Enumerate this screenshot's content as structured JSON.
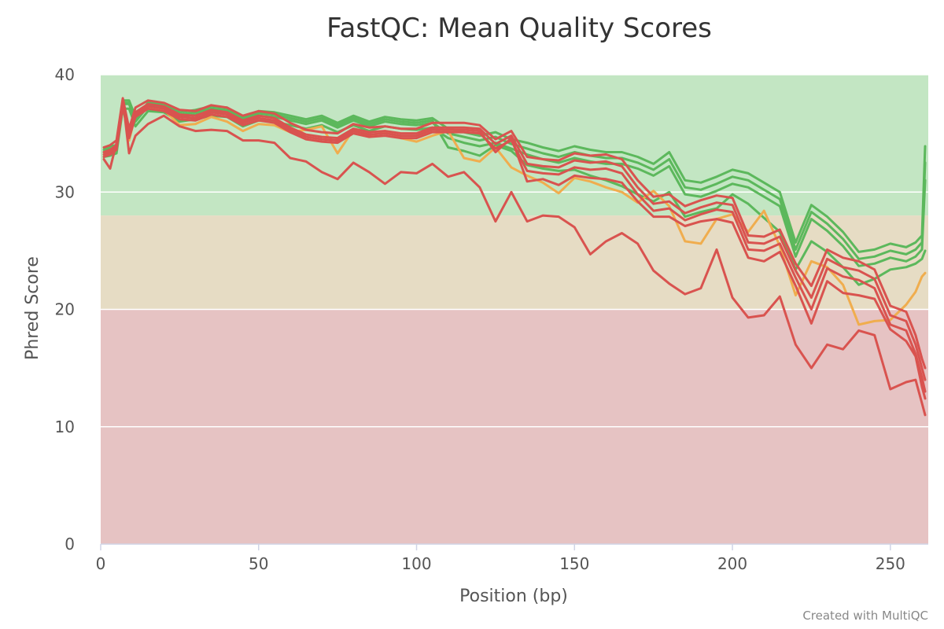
{
  "credit": "Created with MultiQC",
  "colors": {
    "band_good": "#c3e6c3",
    "band_warn": "#e6dcc4",
    "band_fail": "#e6c3c3",
    "pass": "#5cb85c",
    "warn": "#f0ad4e",
    "fail": "#d9534f",
    "text": "#333333"
  },
  "chart_data": {
    "type": "line",
    "title": "FastQC: Mean Quality Scores",
    "xlabel": "Position (bp)",
    "ylabel": "Phred Score",
    "xlim": [
      0,
      262
    ],
    "ylim": [
      0,
      40
    ],
    "xticks": [
      0,
      50,
      100,
      150,
      200,
      250
    ],
    "yticks": [
      0,
      10,
      20,
      30,
      40
    ],
    "grid": true,
    "bands": [
      {
        "from": 28,
        "to": 40,
        "color": "#c3e6c3"
      },
      {
        "from": 20,
        "to": 28,
        "color": "#e6dcc4"
      },
      {
        "from": 0,
        "to": 20,
        "color": "#e6c3c3"
      }
    ],
    "series": [
      {
        "status": "pass",
        "x": [
          1,
          3,
          5,
          7,
          9,
          11,
          15,
          20,
          25,
          30,
          35,
          40,
          45,
          50,
          55,
          60,
          65,
          70,
          75,
          80,
          85,
          90,
          95,
          100,
          105,
          110,
          115,
          120,
          125,
          130,
          135,
          140,
          145,
          150,
          155,
          160,
          165,
          170,
          175,
          180,
          185,
          190,
          195,
          200,
          205,
          210,
          215,
          220,
          225,
          230,
          235,
          240,
          245,
          250,
          255,
          258,
          260,
          261
        ],
        "y": [
          33.8,
          33.9,
          34.0,
          37.8,
          37.8,
          36.4,
          37.6,
          37.5,
          36.8,
          37.0,
          37.3,
          37.2,
          36.4,
          36.9,
          36.8,
          36.5,
          36.2,
          36.5,
          35.9,
          36.5,
          36.0,
          36.4,
          36.2,
          36.1,
          36.3,
          35.4,
          35.1,
          34.8,
          35.1,
          34.5,
          34.2,
          33.8,
          33.5,
          33.9,
          33.6,
          33.4,
          33.4,
          33.0,
          32.4,
          33.4,
          31.0,
          30.8,
          31.3,
          31.9,
          31.6,
          30.8,
          30.0,
          25.7,
          28.9,
          27.9,
          26.6,
          24.9,
          25.1,
          25.6,
          25.3,
          25.7,
          26.3,
          33.9
        ]
      },
      {
        "status": "pass",
        "x": [
          1,
          3,
          5,
          7,
          9,
          11,
          15,
          20,
          25,
          30,
          35,
          40,
          45,
          50,
          55,
          60,
          65,
          70,
          75,
          80,
          85,
          90,
          95,
          100,
          105,
          110,
          115,
          120,
          125,
          130,
          135,
          140,
          145,
          150,
          155,
          160,
          165,
          170,
          175,
          180,
          185,
          190,
          195,
          200,
          205,
          210,
          215,
          220,
          225,
          230,
          235,
          240,
          245,
          250,
          255,
          258,
          260,
          261
        ],
        "y": [
          33.4,
          33.5,
          33.7,
          37.5,
          37.5,
          36.0,
          37.3,
          37.2,
          36.4,
          36.6,
          36.9,
          36.8,
          36.0,
          36.5,
          36.4,
          36.1,
          35.8,
          36.1,
          35.5,
          36.1,
          35.6,
          36.0,
          35.8,
          35.7,
          35.9,
          35.0,
          34.7,
          34.4,
          34.7,
          34.1,
          33.7,
          33.3,
          33.0,
          33.4,
          33.1,
          32.9,
          32.9,
          32.5,
          31.9,
          32.8,
          30.4,
          30.2,
          30.7,
          31.3,
          31.0,
          30.2,
          29.4,
          25.1,
          28.3,
          27.3,
          26.0,
          24.3,
          24.5,
          25.0,
          24.7,
          25.1,
          25.7,
          32.5
        ]
      },
      {
        "status": "pass",
        "x": [
          1,
          3,
          5,
          7,
          9,
          11,
          15,
          20,
          25,
          30,
          35,
          40,
          45,
          50,
          55,
          60,
          65,
          70,
          75,
          80,
          85,
          90,
          95,
          100,
          105,
          110,
          115,
          120,
          125,
          130,
          135,
          140,
          145,
          150,
          155,
          160,
          165,
          170,
          175,
          180,
          185,
          190,
          195,
          200,
          205,
          210,
          215,
          220,
          225,
          230,
          235,
          240,
          245,
          250,
          255,
          258,
          260,
          261
        ],
        "y": [
          33.0,
          33.1,
          33.3,
          37.1,
          37.1,
          35.6,
          36.9,
          36.8,
          36.0,
          36.2,
          36.5,
          36.4,
          35.6,
          36.1,
          36.0,
          35.7,
          35.4,
          35.7,
          35.1,
          35.7,
          35.2,
          35.6,
          35.4,
          35.3,
          35.5,
          34.6,
          34.2,
          33.9,
          34.2,
          33.7,
          33.2,
          32.8,
          32.5,
          32.9,
          32.6,
          32.4,
          32.4,
          32.0,
          31.4,
          32.2,
          29.8,
          29.6,
          30.1,
          30.7,
          30.4,
          29.6,
          28.8,
          24.5,
          27.7,
          26.7,
          25.4,
          23.7,
          23.9,
          24.4,
          24.1,
          24.5,
          25.1,
          31.0
        ]
      },
      {
        "status": "pass",
        "x": [
          1,
          3,
          5,
          7,
          9,
          11,
          15,
          20,
          25,
          30,
          35,
          40,
          45,
          50,
          55,
          60,
          65,
          70,
          75,
          80,
          85,
          90,
          95,
          100,
          105,
          110,
          115,
          120,
          125,
          130,
          135,
          140,
          145,
          150,
          155,
          160,
          165,
          170,
          175,
          180,
          185,
          190,
          195,
          200,
          205,
          210,
          215,
          220,
          225,
          230,
          235,
          240,
          245,
          250,
          255,
          258,
          260,
          261
        ],
        "y": [
          33.6,
          33.7,
          33.8,
          37.6,
          37.6,
          36.2,
          37.4,
          37.3,
          36.6,
          36.8,
          37.1,
          37.0,
          36.2,
          36.7,
          36.6,
          36.3,
          36.0,
          36.3,
          35.7,
          36.3,
          35.8,
          36.2,
          36.0,
          35.9,
          36.1,
          33.8,
          33.5,
          33.1,
          34.0,
          33.5,
          32.3,
          32.0,
          31.8,
          31.9,
          31.4,
          31.0,
          30.5,
          29.8,
          29.2,
          30.0,
          27.9,
          28.3,
          28.6,
          29.8,
          29.0,
          27.8,
          26.6,
          23.4,
          25.8,
          24.9,
          23.6,
          22.1,
          22.6,
          23.4,
          23.6,
          23.9,
          24.3,
          25.0
        ]
      },
      {
        "status": "warn",
        "x": [
          1,
          3,
          5,
          7,
          9,
          11,
          15,
          20,
          25,
          30,
          35,
          40,
          45,
          50,
          55,
          60,
          65,
          70,
          75,
          80,
          85,
          90,
          95,
          100,
          105,
          110,
          115,
          120,
          125,
          130,
          135,
          140,
          145,
          150,
          155,
          160,
          165,
          170,
          175,
          180,
          185,
          190,
          195,
          200,
          205,
          210,
          215,
          220,
          225,
          230,
          235,
          240,
          245,
          250,
          255,
          258,
          260,
          261
        ],
        "y": [
          33.2,
          33.4,
          33.8,
          37.4,
          34.4,
          36.6,
          37.2,
          37.0,
          35.7,
          35.8,
          36.4,
          36.0,
          35.2,
          35.8,
          35.7,
          35.1,
          35.3,
          35.6,
          33.3,
          35.3,
          34.7,
          35.2,
          34.6,
          34.3,
          34.8,
          35.2,
          32.9,
          32.6,
          33.8,
          32.1,
          31.4,
          30.8,
          29.9,
          31.2,
          30.9,
          30.4,
          30.0,
          29.1,
          30.1,
          28.8,
          25.8,
          25.6,
          27.7,
          28.1,
          26.6,
          28.4,
          25.4,
          21.2,
          24.1,
          23.6,
          22.1,
          18.7,
          19.0,
          19.1,
          20.4,
          21.5,
          22.8,
          23.1
        ]
      },
      {
        "status": "fail",
        "x": [
          1,
          3,
          5,
          7,
          9,
          11,
          15,
          20,
          25,
          30,
          35,
          40,
          45,
          50,
          55,
          60,
          65,
          70,
          75,
          80,
          85,
          90,
          95,
          100,
          105,
          110,
          115,
          120,
          125,
          130,
          135,
          140,
          145,
          150,
          155,
          160,
          165,
          170,
          175,
          180,
          185,
          190,
          195,
          200,
          205,
          210,
          215,
          220,
          225,
          230,
          235,
          240,
          245,
          250,
          255,
          258,
          260,
          261
        ],
        "y": [
          33.4,
          33.6,
          34.0,
          37.7,
          35.0,
          36.8,
          37.5,
          37.3,
          36.6,
          36.5,
          37.0,
          36.8,
          36.1,
          36.5,
          36.3,
          35.5,
          34.9,
          34.7,
          34.6,
          35.4,
          35.1,
          35.2,
          35.0,
          35.0,
          35.5,
          35.5,
          35.5,
          35.4,
          34.1,
          34.8,
          32.4,
          32.2,
          32.1,
          32.7,
          32.5,
          32.6,
          32.2,
          30.4,
          29.0,
          29.2,
          28.2,
          28.7,
          29.1,
          28.9,
          25.7,
          25.6,
          26.2,
          23.3,
          21.0,
          24.3,
          23.6,
          23.3,
          22.6,
          19.5,
          19.0,
          17.0,
          15.0,
          14.0
        ]
      },
      {
        "status": "fail",
        "x": [
          1,
          3,
          5,
          7,
          9,
          11,
          15,
          20,
          25,
          30,
          35,
          40,
          45,
          50,
          55,
          60,
          65,
          70,
          75,
          80,
          85,
          90,
          95,
          100,
          105,
          110,
          115,
          120,
          125,
          130,
          135,
          140,
          145,
          150,
          155,
          160,
          165,
          170,
          175,
          180,
          185,
          190,
          195,
          200,
          205,
          210,
          215,
          220,
          225,
          230,
          235,
          240,
          245,
          250,
          255,
          258,
          260,
          261
        ],
        "y": [
          33.0,
          33.2,
          33.6,
          37.3,
          34.6,
          36.4,
          37.1,
          36.9,
          36.2,
          36.1,
          36.6,
          36.4,
          35.7,
          36.1,
          35.9,
          35.1,
          34.5,
          34.3,
          34.2,
          35.0,
          34.7,
          34.8,
          34.6,
          34.6,
          35.1,
          35.1,
          35.1,
          35.0,
          33.7,
          34.4,
          31.8,
          31.6,
          31.5,
          32.1,
          31.9,
          32.0,
          31.6,
          29.8,
          28.4,
          28.6,
          27.6,
          28.1,
          28.5,
          28.3,
          25.1,
          25.0,
          25.6,
          22.7,
          20.0,
          23.5,
          22.8,
          22.5,
          21.8,
          18.7,
          18.2,
          16.2,
          14.2,
          13.0
        ]
      },
      {
        "status": "fail",
        "x": [
          1,
          3,
          5,
          7,
          9,
          11,
          15,
          20,
          25,
          30,
          35,
          40,
          45,
          50,
          55,
          60,
          65,
          70,
          75,
          80,
          85,
          90,
          95,
          100,
          105,
          110,
          115,
          120,
          125,
          130,
          135,
          140,
          145,
          150,
          155,
          160,
          165,
          170,
          175,
          180,
          185,
          190,
          195,
          200,
          205,
          210,
          215,
          220,
          225,
          230,
          235,
          240,
          245,
          250,
          255,
          258,
          260,
          261
        ],
        "y": [
          33.8,
          34.0,
          34.4,
          38.0,
          35.4,
          37.2,
          37.8,
          37.6,
          37.0,
          36.9,
          37.4,
          37.2,
          36.5,
          36.9,
          36.7,
          35.9,
          35.3,
          35.1,
          35.0,
          35.8,
          35.5,
          35.6,
          35.4,
          35.4,
          35.9,
          35.9,
          35.9,
          35.7,
          34.5,
          35.2,
          33.0,
          32.8,
          32.7,
          33.3,
          33.1,
          33.2,
          32.8,
          31.0,
          29.6,
          29.8,
          28.8,
          29.3,
          29.7,
          29.5,
          26.3,
          26.2,
          26.8,
          23.9,
          22.0,
          25.1,
          24.4,
          24.1,
          23.4,
          20.3,
          19.8,
          17.8,
          15.8,
          15.0
        ]
      },
      {
        "status": "fail",
        "x": [
          1,
          3,
          5,
          7,
          9,
          11,
          15,
          20,
          25,
          30,
          35,
          40,
          45,
          50,
          55,
          60,
          65,
          70,
          75,
          80,
          85,
          90,
          95,
          100,
          105,
          110,
          115,
          120,
          125,
          130,
          135,
          140,
          145,
          150,
          155,
          160,
          165,
          170,
          175,
          180,
          185,
          190,
          195,
          200,
          205,
          210,
          215,
          220,
          225,
          230,
          235,
          240,
          245,
          250,
          255,
          258,
          260,
          261
        ],
        "y": [
          33.2,
          33.4,
          33.8,
          37.5,
          34.8,
          36.6,
          37.3,
          37.1,
          36.4,
          36.3,
          36.8,
          36.6,
          35.9,
          36.3,
          36.1,
          35.3,
          34.7,
          34.5,
          34.4,
          35.2,
          34.9,
          35.0,
          34.8,
          34.8,
          35.3,
          35.3,
          35.3,
          35.2,
          33.4,
          34.6,
          30.9,
          31.1,
          30.6,
          31.4,
          31.2,
          31.1,
          30.8,
          29.2,
          27.9,
          27.9,
          27.1,
          27.5,
          27.7,
          27.4,
          24.4,
          24.1,
          24.9,
          22.0,
          18.8,
          22.4,
          21.4,
          21.2,
          20.9,
          18.3,
          17.3,
          16.0,
          13.4,
          12.4
        ]
      },
      {
        "status": "fail",
        "x": [
          1,
          3,
          5,
          7,
          9,
          11,
          15,
          20,
          25,
          30,
          35,
          40,
          45,
          50,
          55,
          60,
          65,
          70,
          75,
          80,
          85,
          90,
          95,
          100,
          105,
          110,
          115,
          120,
          125,
          130,
          135,
          140,
          145,
          150,
          155,
          160,
          165,
          170,
          175,
          180,
          185,
          190,
          195,
          200,
          205,
          210,
          215,
          220,
          225,
          230,
          235,
          240,
          245,
          250,
          255,
          258,
          260,
          261
        ],
        "y": [
          32.8,
          32.0,
          34.2,
          37.9,
          33.3,
          34.8,
          35.8,
          36.5,
          35.6,
          35.2,
          35.3,
          35.2,
          34.4,
          34.4,
          34.2,
          32.9,
          32.6,
          31.7,
          31.1,
          32.5,
          31.7,
          30.7,
          31.7,
          31.6,
          32.4,
          31.3,
          31.7,
          30.4,
          27.5,
          30.0,
          27.5,
          28.0,
          27.9,
          27.0,
          24.7,
          25.8,
          26.5,
          25.6,
          23.3,
          22.2,
          21.3,
          21.8,
          25.1,
          21.0,
          19.3,
          19.5,
          21.1,
          17.0,
          15.0,
          17.0,
          16.6,
          18.2,
          17.8,
          13.2,
          13.8,
          14.0,
          12.0,
          11.0
        ]
      }
    ]
  }
}
